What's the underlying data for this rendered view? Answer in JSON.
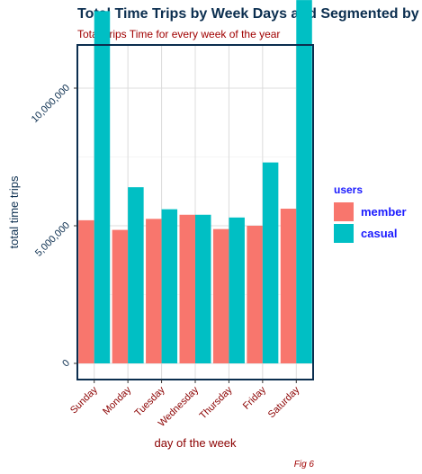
{
  "chart_data": {
    "type": "bar",
    "title": "Total Time Trips by Week Days and Segmented by",
    "subtitle": "Total Trips Time for every week of the year",
    "xlabel": "day of the week",
    "ylabel": "total time trips",
    "caption": "Fig 6",
    "categories": [
      "Sunday",
      "Monday",
      "Tuesday",
      "Wednesday",
      "Thursday",
      "Friday",
      "Saturday"
    ],
    "series": [
      {
        "name": "member",
        "color": "#F8766D",
        "values": [
          5200000,
          4850000,
          5250000,
          5400000,
          4880000,
          5000000,
          5620000
        ]
      },
      {
        "name": "casual",
        "color": "#00BFC4",
        "values": [
          12800000,
          6400000,
          5600000,
          5400000,
          5300000,
          7300000,
          13200000
        ]
      }
    ],
    "ylim": [
      0,
      13500000
    ],
    "yticks": [
      0,
      5000000,
      10000000
    ],
    "ytick_labels": [
      "0",
      "5,000,000",
      "10,000,000"
    ],
    "legend": {
      "title": "users",
      "position": "right"
    },
    "grid": true
  }
}
